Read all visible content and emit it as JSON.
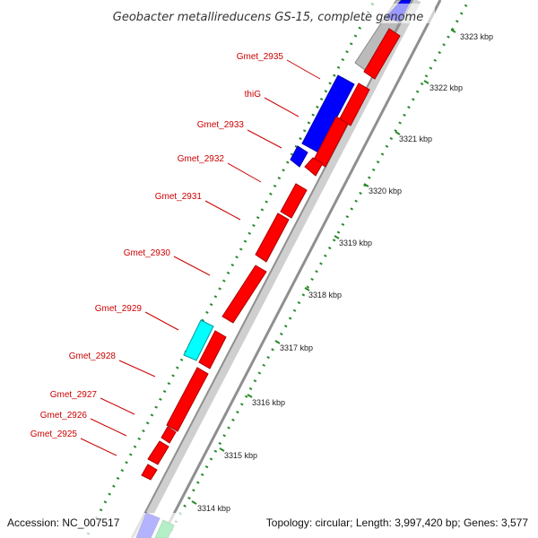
{
  "title": "Geobacter metallireducens GS-15, complete genome",
  "footer": {
    "accession": "Accession: NC_007517",
    "info": "Topology: circular; Length: 3,997,420 bp; Genes: 3,577"
  },
  "colors": {
    "forward_cds": "#0000ff",
    "reverse_cds": "#ff0000",
    "rna": "#00ffff",
    "other": "#00cc44",
    "unknown": "#bbbbbb",
    "backbone": "#999999",
    "label": "#cc0000",
    "tick": "#2a8a2a"
  },
  "genes": [
    {
      "name": "Gmet_2935"
    },
    {
      "name": "thiG"
    },
    {
      "name": "Gmet_2933"
    },
    {
      "name": "Gmet_2932"
    },
    {
      "name": "Gmet_2931"
    },
    {
      "name": "Gmet_2930"
    },
    {
      "name": "Gmet_2929"
    },
    {
      "name": "Gmet_2928"
    },
    {
      "name": "Gmet_2927"
    },
    {
      "name": "Gmet_2926"
    },
    {
      "name": "Gmet_2925"
    }
  ],
  "ticks": [
    {
      "label": "3323 kbp"
    },
    {
      "label": "3322 kbp"
    },
    {
      "label": "3321 kbp"
    },
    {
      "label": "3320 kbp"
    },
    {
      "label": "3319 kbp"
    },
    {
      "label": "3318 kbp"
    },
    {
      "label": "3317 kbp"
    },
    {
      "label": "3316 kbp"
    },
    {
      "label": "3315 kbp"
    },
    {
      "label": "3314 kbp"
    }
  ]
}
